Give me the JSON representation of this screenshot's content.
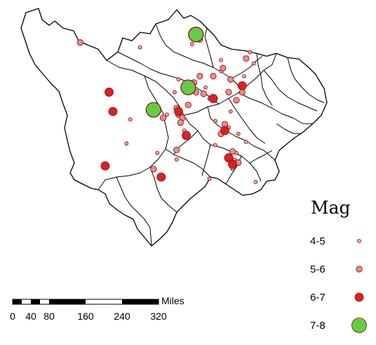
{
  "legend": {
    "title": "Mag",
    "classes": [
      {
        "label": "4-5",
        "color": "#f4a3a3",
        "r": 2.5
      },
      {
        "label": "5-6",
        "color": "#f08a8a",
        "r": 4.2
      },
      {
        "label": "6-7",
        "color": "#e02020",
        "r": 6
      },
      {
        "label": "7-8",
        "color": "#66cc44",
        "r": 10.5
      }
    ]
  },
  "scale_bar": {
    "unit": "Miles",
    "ticks": [
      "0",
      "40",
      "80",
      "160",
      "240",
      "320"
    ]
  },
  "colors": {
    "boundary": "#000000",
    "background": "#ffffff"
  },
  "events": [
    {
      "lon": 0.38,
      "lat": 0.12,
      "mag": 4.5
    },
    {
      "lon": 0.88,
      "lat": 0.78,
      "mag": 4.5
    },
    {
      "lon": 0.74,
      "lat": 0.94,
      "mag": 4.5
    },
    {
      "lon": 0.98,
      "lat": 0.96,
      "mag": 4.5
    },
    {
      "lon": 0.86,
      "lat": 0.88,
      "mag": 4.5
    },
    {
      "lon": 0.77,
      "lat": 0.73,
      "mag": 4.5
    },
    {
      "lon": 0.84,
      "lat": 0.62,
      "mag": 4.5
    },
    {
      "lon": 0.89,
      "lat": 0.66,
      "mag": 4.5
    },
    {
      "lon": 0.77,
      "lat": 0.58,
      "mag": 4.5
    },
    {
      "lon": 0.85,
      "lat": 0.52,
      "mag": 4.5
    },
    {
      "lon": 0.93,
      "lat": 0.71,
      "mag": 4.5
    },
    {
      "lon": 0.31,
      "lat": 0.72,
      "mag": 4.5
    },
    {
      "lon": 0.33,
      "lat": 0.57,
      "mag": 4.5
    },
    {
      "lon": 0.56,
      "lat": 0.4,
      "mag": 4.5
    },
    {
      "lon": 0.58,
      "lat": 0.32,
      "mag": 4.5
    },
    {
      "lon": 0.72,
      "lat": 0.37,
      "mag": 4.5
    },
    {
      "lon": 0.74,
      "lat": 0.44,
      "mag": 4.5
    },
    {
      "lon": 0.8,
      "lat": 0.27,
      "mag": 4.5
    },
    {
      "lon": 0.8,
      "lat": 0.2,
      "mag": 4.5
    },
    {
      "lon": 0.92,
      "lat": 0.3,
      "mag": 4.5
    },
    {
      "lon": 0.95,
      "lat": 0.15,
      "mag": 4.5
    },
    {
      "lon": 0.97,
      "lat": 0.22,
      "mag": 4.5
    },
    {
      "lon": 0.65,
      "lat": 0.1,
      "mag": 4.5
    },
    {
      "lon": 0.52,
      "lat": 0.54,
      "mag": 4.5
    },
    {
      "lon": 0.47,
      "lat": 0.78,
      "mag": 4.5
    },
    {
      "lon": 0.61,
      "lat": 0.64,
      "mag": 4.5
    },
    {
      "lon": 0.57,
      "lat": 0.82,
      "mag": 4.5
    },
    {
      "lon": 0.07,
      "lat": 0.09,
      "mag": 5.5
    },
    {
      "lon": 0.66,
      "lat": 0.34,
      "mag": 5.5
    },
    {
      "lon": 0.69,
      "lat": 0.3,
      "mag": 5.5
    },
    {
      "lon": 0.76,
      "lat": 0.3,
      "mag": 5.5
    },
    {
      "lon": 0.71,
      "lat": 0.41,
      "mag": 5.5
    },
    {
      "lon": 0.63,
      "lat": 0.48,
      "mag": 5.5
    },
    {
      "lon": 0.67,
      "lat": 0.4,
      "mag": 5.5
    },
    {
      "lon": 0.57,
      "lat": 0.5,
      "mag": 5.5
    },
    {
      "lon": 0.58,
      "lat": 0.54,
      "mag": 5.5
    },
    {
      "lon": 0.6,
      "lat": 0.56,
      "mag": 5.5
    },
    {
      "lon": 0.59,
      "lat": 0.59,
      "mag": 5.5
    },
    {
      "lon": 0.5,
      "lat": 0.56,
      "mag": 5.5
    },
    {
      "lon": 0.88,
      "lat": 0.45,
      "mag": 5.5
    },
    {
      "lon": 0.82,
      "lat": 0.6,
      "mag": 5.5
    },
    {
      "lon": 0.8,
      "lat": 0.66,
      "mag": 5.5
    },
    {
      "lon": 0.86,
      "lat": 0.77,
      "mag": 5.5
    },
    {
      "lon": 0.87,
      "lat": 0.83,
      "mag": 5.5
    },
    {
      "lon": 0.89,
      "lat": 0.84,
      "mag": 5.5
    },
    {
      "lon": 0.93,
      "lat": 0.19,
      "mag": 5.5
    },
    {
      "lon": 0.81,
      "lat": 0.25,
      "mag": 5.5
    },
    {
      "lon": 0.85,
      "lat": 0.32,
      "mag": 5.5
    },
    {
      "lon": 0.84,
      "lat": 0.4,
      "mag": 5.5
    },
    {
      "lon": 0.91,
      "lat": 0.4,
      "mag": 5.5
    },
    {
      "lon": 0.69,
      "lat": 0.07,
      "mag": 5.5
    },
    {
      "lon": 0.45,
      "lat": 0.88,
      "mag": 5.5
    },
    {
      "lon": 0.57,
      "lat": 0.76,
      "mag": 5.5
    },
    {
      "lon": 0.22,
      "lat": 0.4,
      "mag": 6.5
    },
    {
      "lon": 0.24,
      "lat": 0.52,
      "mag": 6.5
    },
    {
      "lon": 0.45,
      "lat": 0.52,
      "mag": 6.5
    },
    {
      "lon": 0.58,
      "lat": 0.52,
      "mag": 6.5
    },
    {
      "lon": 0.62,
      "lat": 0.67,
      "mag": 6.5
    },
    {
      "lon": 0.76,
      "lat": 0.44,
      "mag": 6.5
    },
    {
      "lon": 0.82,
      "lat": 0.64,
      "mag": 6.5
    },
    {
      "lon": 0.84,
      "lat": 0.81,
      "mag": 6.5
    },
    {
      "lon": 0.86,
      "lat": 0.85,
      "mag": 6.5
    },
    {
      "lon": 0.91,
      "lat": 0.36,
      "mag": 6.5
    },
    {
      "lon": 0.2,
      "lat": 0.86,
      "mag": 6.5
    },
    {
      "lon": 0.49,
      "lat": 0.93,
      "mag": 6.5
    },
    {
      "lon": 0.67,
      "lat": 0.04,
      "mag": 7.5
    },
    {
      "lon": 0.63,
      "lat": 0.37,
      "mag": 7.5
    },
    {
      "lon": 0.45,
      "lat": 0.51,
      "mag": 7.5
    }
  ]
}
